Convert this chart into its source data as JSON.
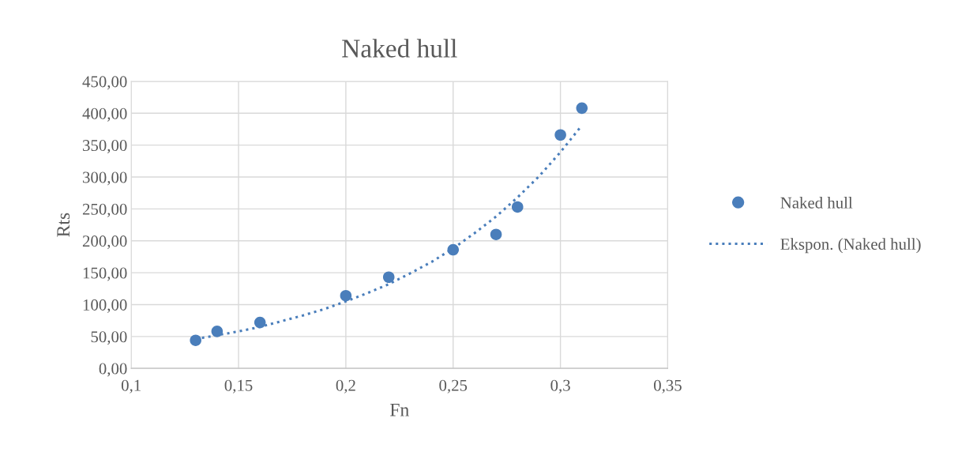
{
  "chart_data": {
    "type": "scatter",
    "title": "Naked hull",
    "xlabel": "Fn",
    "ylabel": "Rts",
    "series": [
      {
        "name": "Naked hull",
        "color": "#4a7ebb",
        "marker": "circle",
        "x": [
          0.13,
          0.14,
          0.16,
          0.2,
          0.22,
          0.25,
          0.27,
          0.28,
          0.3,
          0.31
        ],
        "values": [
          44,
          58,
          72,
          114,
          143,
          186,
          210,
          253,
          366,
          408
        ]
      },
      {
        "name": "Ekspon. (Naked hull)",
        "type": "line",
        "color": "#4a7ebb",
        "line_style": "dotted",
        "marker": "none",
        "x": [
          0.13,
          0.14,
          0.15,
          0.16,
          0.17,
          0.18,
          0.19,
          0.2,
          0.21,
          0.22,
          0.23,
          0.24,
          0.25,
          0.26,
          0.27,
          0.28,
          0.29,
          0.3,
          0.31
        ],
        "values": [
          46,
          52,
          58,
          65,
          74,
          83,
          93,
          105,
          118,
          132,
          149,
          167,
          188,
          212,
          238,
          268,
          301,
          339,
          381
        ]
      }
    ],
    "xlim": [
      0.1,
      0.35
    ],
    "xticks": [
      {
        "value": 0.1,
        "label": "0,1"
      },
      {
        "value": 0.15,
        "label": "0,15"
      },
      {
        "value": 0.2,
        "label": "0,2"
      },
      {
        "value": 0.25,
        "label": "0,25"
      },
      {
        "value": 0.3,
        "label": "0,3"
      },
      {
        "value": 0.35,
        "label": "0,35"
      }
    ],
    "ylim": [
      0,
      450
    ],
    "yticks": [
      {
        "value": 0,
        "label": "0,00"
      },
      {
        "value": 50,
        "label": "50,00"
      },
      {
        "value": 100,
        "label": "100,00"
      },
      {
        "value": 150,
        "label": "150,00"
      },
      {
        "value": 200,
        "label": "200,00"
      },
      {
        "value": 250,
        "label": "250,00"
      },
      {
        "value": 300,
        "label": "300,00"
      },
      {
        "value": 350,
        "label": "350,00"
      },
      {
        "value": 400,
        "label": "400,00"
      },
      {
        "value": 450,
        "label": "450,00"
      }
    ],
    "grid": true,
    "legend": "right"
  }
}
